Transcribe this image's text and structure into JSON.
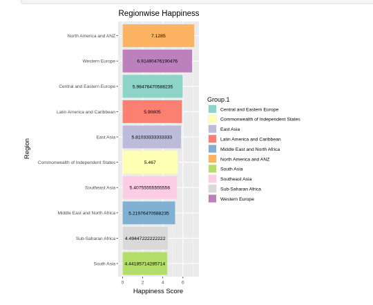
{
  "chart_data": {
    "type": "bar",
    "orientation": "horizontal",
    "title": "Regionwise Happiness",
    "xlabel": "Happiness Score",
    "ylabel": "Region",
    "xlim": [
      0,
      7.4
    ],
    "xticks": [
      0,
      2,
      4,
      6
    ],
    "grid": true,
    "legend_title": "Group.1",
    "legend_position": "right",
    "categories": [
      "South Asia",
      "Sub-Saharan Africa",
      "Middle East and North Africa",
      "Southeast Asia",
      "Commonwealth of Independent States",
      "East Asia",
      "Latin America and Caribbean",
      "Central and Eastern Europe",
      "Western Europe",
      "North America and ANZ"
    ],
    "values": [
      4.44185714285714,
      4.49447222222222,
      5.21976470588235,
      5.40755555555556,
      5.467,
      5.81033333333333,
      5.90805,
      5.98476470588235,
      6.91490476190476,
      7.1285
    ],
    "value_labels": [
      "4.44185714285714",
      "4.49447222222222",
      "5.21976470588235",
      "5.40755555555556",
      "5.467",
      "5.81033333333333",
      "5.90805",
      "5.98476470588235",
      "6.91490476190476",
      "7.1285"
    ],
    "colors": [
      "#b3de69",
      "#d9d9d9",
      "#80b1d3",
      "#fccde5",
      "#ffffb3",
      "#bebada",
      "#fb8072",
      "#8dd3c7",
      "#bc80bd",
      "#fdb462"
    ],
    "legend": [
      {
        "label": "Central and Eastern Europe",
        "color": "#8dd3c7"
      },
      {
        "label": "Commonwealth of Independent States",
        "color": "#ffffb3"
      },
      {
        "label": "East Asia",
        "color": "#bebada"
      },
      {
        "label": "Latin America and Caribbean",
        "color": "#fb8072"
      },
      {
        "label": "Middle East and North Africa",
        "color": "#80b1d3"
      },
      {
        "label": "North America and ANZ",
        "color": "#fdb462"
      },
      {
        "label": "South Asia",
        "color": "#b3de69"
      },
      {
        "label": "Southeast Asia",
        "color": "#fccde5"
      },
      {
        "label": "Sub-Saharan Africa",
        "color": "#d9d9d9"
      },
      {
        "label": "Western Europe",
        "color": "#bc80bd"
      }
    ]
  }
}
